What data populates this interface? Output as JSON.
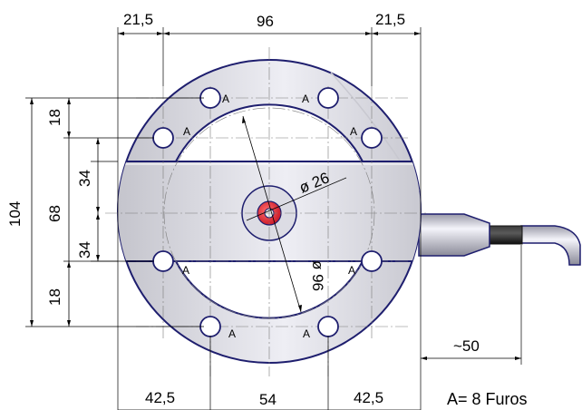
{
  "dimensions": {
    "top_left": "21,5",
    "top_mid": "96",
    "top_right": "21,5",
    "left_outer": "104",
    "left_top": "18",
    "left_bottom": "18",
    "left_inner": "68",
    "inner_top": "34",
    "inner_bottom": "34",
    "bottom_left": "42,5",
    "bottom_mid": "54",
    "bottom_right": "42,5",
    "hub_diameter": "ø 26",
    "bolt_circle_diameter": "ø 96",
    "cable_length": "~50"
  },
  "hole_label": "A",
  "note": "A= 8 Furos",
  "colors": {
    "outline": "#1e1e6e",
    "body_fill": "#d2d2da",
    "body_highlight": "#eeeeF4",
    "hub_red": "#e02030",
    "cable_dark": "#1c1c1c"
  }
}
